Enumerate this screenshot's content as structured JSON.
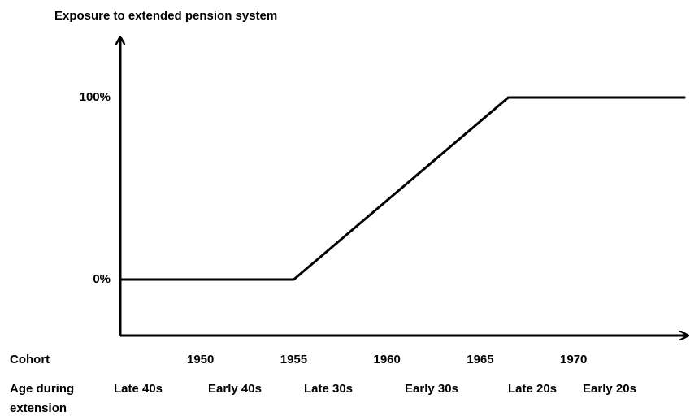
{
  "chart_data": {
    "type": "line",
    "title": "Exposure to extended pension system",
    "x": [
      1945.7,
      1955,
      1966.5,
      1976
    ],
    "values": [
      0,
      0,
      100,
      100
    ],
    "color": "#000000",
    "xlim": [
      1945.7,
      1976.2
    ],
    "ylim": [
      -30.8,
      133.5
    ],
    "xticks": [
      1950,
      1955,
      1960,
      1965,
      1970
    ],
    "yticks": [
      {
        "value": 0,
        "label": "0%"
      },
      {
        "value": 100,
        "label": "100%"
      }
    ],
    "x_row_label": "Cohort",
    "age_row_label": [
      "Age during",
      "extension"
    ],
    "age_labels": [
      "Late 40s",
      "Early 40s",
      "Late 30s",
      "Early 30s",
      "Late 20s",
      "Early 20s"
    ],
    "grid": false
  }
}
